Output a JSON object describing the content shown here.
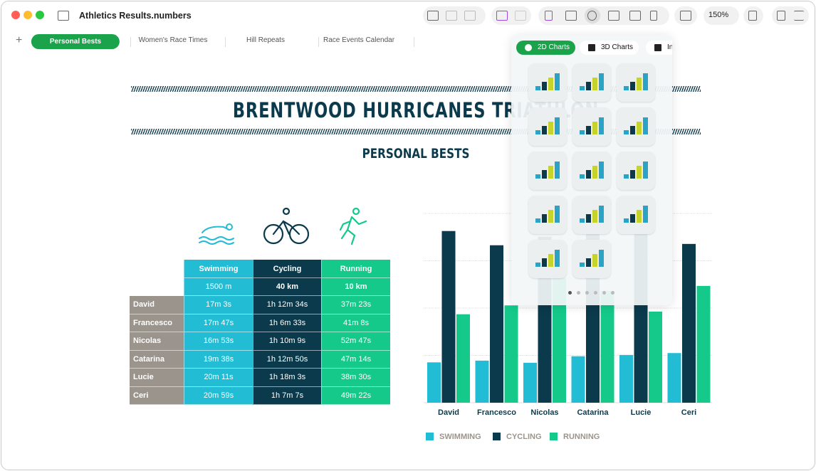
{
  "window": {
    "title": "Athletics Results.numbers",
    "zoom": "150%"
  },
  "sheet_tabs": [
    "Personal Bests",
    "Women's Race Times",
    "Hill Repeats",
    "Race Events Calendar"
  ],
  "active_tab": 0,
  "document": {
    "title": "BRENTWOOD HURRICANES TRIATHLON",
    "subtitle": "PERSONAL BESTS"
  },
  "table": {
    "columns": [
      "Swimming",
      "Cycling",
      "Running"
    ],
    "distances": [
      "1500 m",
      "40 km",
      "10 km"
    ],
    "rows": [
      {
        "name": "David",
        "times": [
          "17m 3s",
          "1h 12m 34s",
          "37m 23s"
        ]
      },
      {
        "name": "Francesco",
        "times": [
          "17m 47s",
          "1h 6m 33s",
          "41m 8s"
        ]
      },
      {
        "name": "Nicolas",
        "times": [
          "16m 53s",
          "1h 10m 9s",
          "52m 47s"
        ]
      },
      {
        "name": "Catarina",
        "times": [
          "19m 38s",
          "1h 12m 50s",
          "47m 14s"
        ]
      },
      {
        "name": "Lucie",
        "times": [
          "20m 11s",
          "1h 18m 3s",
          "38m 30s"
        ]
      },
      {
        "name": "Ceri",
        "times": [
          "20m 59s",
          "1h 7m 7s",
          "49m 22s"
        ]
      }
    ]
  },
  "chart_data": {
    "type": "bar",
    "categories": [
      "David",
      "Francesco",
      "Nicolas",
      "Catarina",
      "Lucie",
      "Ceri"
    ],
    "series": [
      {
        "name": "SWIMMING",
        "color": "#22bcd4",
        "values": [
          1023,
          1067,
          1013,
          1178,
          1211,
          1259
        ]
      },
      {
        "name": "CYCLING",
        "color": "#0b3a4c",
        "values": [
          4354,
          3993,
          4209,
          4370,
          4683,
          4027
        ]
      },
      {
        "name": "RUNNING",
        "color": "#14c98a",
        "values": [
          2243,
          2468,
          3167,
          2834,
          2310,
          2962
        ]
      }
    ],
    "ylim": [
      0,
      4800
    ],
    "grid_values": [
      1200,
      2400,
      3600,
      4800
    ],
    "grid": true,
    "legend": "bottom"
  },
  "chart_popover": {
    "tabs": [
      "2D Charts",
      "3D Charts",
      "Interactive"
    ],
    "active_tab": 0
  }
}
